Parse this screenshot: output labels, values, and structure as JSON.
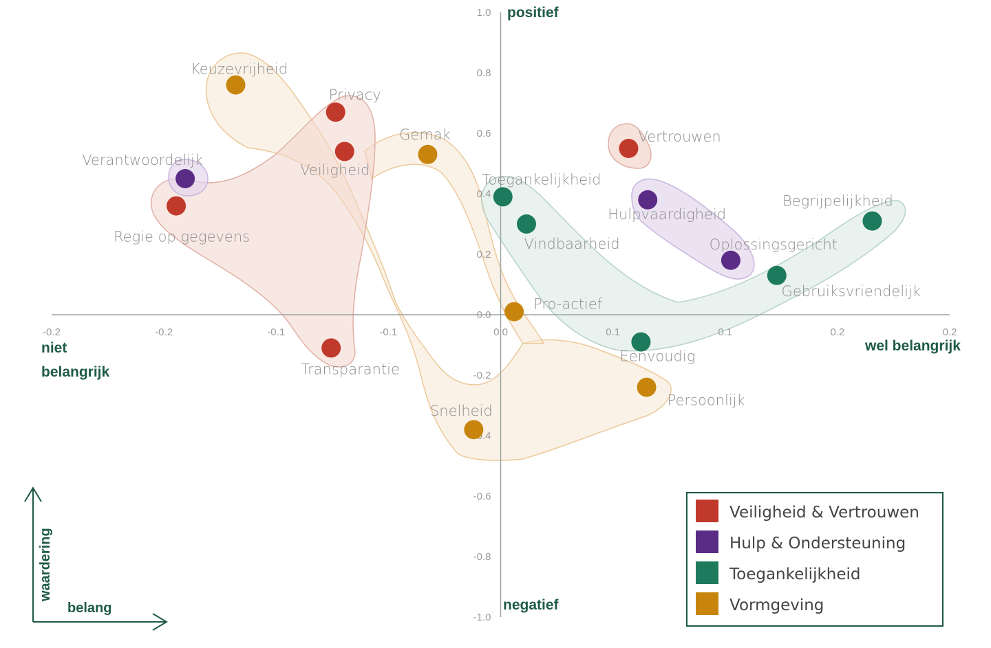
{
  "chart_data": {
    "type": "scatter",
    "title": "",
    "xlabel": "belang",
    "ylabel": "waardering",
    "xlim": [
      -0.2,
      0.2
    ],
    "ylim": [
      -1.0,
      1.0
    ],
    "x_ticks": [
      {
        "value": -0.2,
        "label": "-0.2"
      },
      {
        "value": -0.15,
        "label": "-0.2"
      },
      {
        "value": -0.1,
        "label": "-0.1"
      },
      {
        "value": -0.05,
        "label": "-0.1"
      },
      {
        "value": 0.0,
        "label": "0.0"
      },
      {
        "value": 0.05,
        "label": "0.1"
      },
      {
        "value": 0.1,
        "label": "0.1"
      },
      {
        "value": 0.15,
        "label": "0.2"
      },
      {
        "value": 0.2,
        "label": "0.2"
      }
    ],
    "y_ticks": [
      {
        "value": 1.0,
        "label": "1.0"
      },
      {
        "value": 0.8,
        "label": "0.8"
      },
      {
        "value": 0.6,
        "label": "0.6"
      },
      {
        "value": 0.4,
        "label": "0.4"
      },
      {
        "value": 0.2,
        "label": "0.2"
      },
      {
        "value": 0.0,
        "label": "0.0"
      },
      {
        "value": -0.2,
        "label": "-0.2"
      },
      {
        "value": -0.4,
        "label": "-0.4"
      },
      {
        "value": -0.6,
        "label": "-0.6"
      },
      {
        "value": -0.8,
        "label": "-0.8"
      },
      {
        "value": -1.0,
        "label": "-1.0"
      }
    ],
    "axis_titles": {
      "y_top": "positief",
      "y_bottom": "negatief",
      "x_left_line1": "niet",
      "x_left_line2": "belangrijk",
      "x_right": "wel belangrijk"
    },
    "corner_arrows": {
      "vertical": "waardering",
      "horizontal": "belang"
    },
    "legend_placement": "bottom-right",
    "series": [
      {
        "name": "Veiligheid & Vertrouwen",
        "color": "#c0392b",
        "points": [
          {
            "label": "Privacy",
            "x": -0.0735,
            "y": 0.67
          },
          {
            "label": "Veiligheid",
            "x": -0.0695,
            "y": 0.54
          },
          {
            "label": "Regie op gegevens",
            "x": -0.1445,
            "y": 0.36
          },
          {
            "label": "Transparantie",
            "x": -0.0755,
            "y": -0.11
          },
          {
            "label": "Vertrouwen",
            "x": 0.057,
            "y": 0.55
          }
        ]
      },
      {
        "name": "Hulp & Ondersteuning",
        "color": "#5b2c86",
        "points": [
          {
            "label": "Verantwoordelijk",
            "x": -0.1405,
            "y": 0.45
          },
          {
            "label": "Hulpvaardigheid",
            "x": 0.0655,
            "y": 0.38
          },
          {
            "label": "Oplossingsgericht",
            "x": 0.1025,
            "y": 0.18
          }
        ]
      },
      {
        "name": "Toegankelijkheid",
        "color": "#1e7a5c",
        "points": [
          {
            "label": "Toegankelijkheid",
            "x": 0.001,
            "y": 0.39
          },
          {
            "label": "Vindbaarheid",
            "x": 0.0115,
            "y": 0.3
          },
          {
            "label": "Begrijpelijkheid",
            "x": 0.1655,
            "y": 0.31
          },
          {
            "label": "Gebruiksvriendelijk",
            "x": 0.123,
            "y": 0.13
          },
          {
            "label": "Eenvoudig",
            "x": 0.0625,
            "y": -0.09
          }
        ]
      },
      {
        "name": "Vormgeving",
        "color": "#c8850e",
        "points": [
          {
            "label": "Keuzevrijheid",
            "x": -0.118,
            "y": 0.76
          },
          {
            "label": "Gemak",
            "x": -0.0325,
            "y": 0.53
          },
          {
            "label": "Pro-actief",
            "x": 0.006,
            "y": 0.01
          },
          {
            "label": "Persoonlijk",
            "x": 0.065,
            "y": -0.24
          },
          {
            "label": "Snelheid",
            "x": -0.012,
            "y": -0.38
          }
        ]
      }
    ]
  }
}
